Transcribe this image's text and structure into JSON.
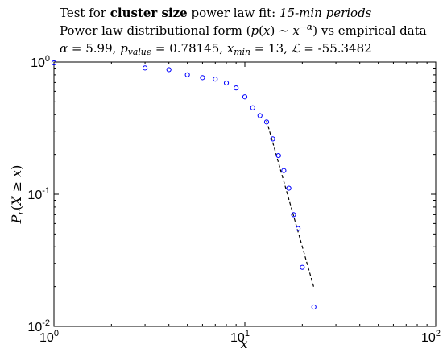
{
  "chart_data": {
    "type": "scatter",
    "title_lines": [
      [
        {
          "text": "Test for ",
          "style": "normal"
        },
        {
          "text": "cluster size",
          "style": "bold"
        },
        {
          "text": " power law fit: ",
          "style": "normal"
        },
        {
          "text": "15-min periods",
          "style": "italic"
        }
      ],
      [
        {
          "text": "Power law distributional form (",
          "style": "normal"
        },
        {
          "text": "p",
          "style": "italic"
        },
        {
          "text": "(",
          "style": "normal"
        },
        {
          "text": "x",
          "style": "italic"
        },
        {
          "text": ") ∼ ",
          "style": "normal"
        },
        {
          "text": "x",
          "style": "italic"
        },
        {
          "text": "−α",
          "style": "sup-italic"
        },
        {
          "text": ") vs empirical data",
          "style": "normal"
        }
      ],
      [
        {
          "text": "α",
          "style": "italic"
        },
        {
          "text": " = 5.99, ",
          "style": "normal"
        },
        {
          "text": "p",
          "style": "italic"
        },
        {
          "text": "value",
          "style": "sub-italic"
        },
        {
          "text": " = 0.78145, ",
          "style": "normal"
        },
        {
          "text": "x",
          "style": "italic"
        },
        {
          "text": "min",
          "style": "sub-italic"
        },
        {
          "text": " = 13, ",
          "style": "normal"
        },
        {
          "text": "ℒ",
          "style": "italic"
        },
        {
          "text": " = -55.3482",
          "style": "normal"
        }
      ]
    ],
    "xlabel": "x",
    "ylabel_parts": [
      {
        "text": "P",
        "style": "italic"
      },
      {
        "text": "r",
        "style": "sub-italic"
      },
      {
        "text": "(",
        "style": "normal"
      },
      {
        "text": "X",
        "style": "italic"
      },
      {
        "text": " ≥ ",
        "style": "normal"
      },
      {
        "text": "x",
        "style": "italic"
      },
      {
        "text": ")",
        "style": "normal"
      }
    ],
    "x_scale": "log",
    "y_scale": "log",
    "xlim": [
      1,
      100
    ],
    "ylim": [
      0.01,
      1
    ],
    "x_ticks": [
      {
        "value": 1,
        "base": "10",
        "exp": "0"
      },
      {
        "value": 10,
        "base": "10",
        "exp": "1"
      },
      {
        "value": 100,
        "base": "10",
        "exp": "2"
      }
    ],
    "y_ticks": [
      {
        "value": 0.01,
        "base": "10",
        "exp": "-2"
      },
      {
        "value": 0.1,
        "base": "10",
        "exp": "-1"
      },
      {
        "value": 1,
        "base": "10",
        "exp": "0"
      }
    ],
    "grid": false,
    "series": [
      {
        "kind": "markers",
        "marker": "open-circle",
        "color": "#0000ff",
        "points": [
          [
            1,
            0.986
          ],
          [
            3,
            0.902
          ],
          [
            4,
            0.876
          ],
          [
            5,
            0.801
          ],
          [
            6,
            0.762
          ],
          [
            7,
            0.743
          ],
          [
            8,
            0.694
          ],
          [
            9,
            0.637
          ],
          [
            10,
            0.545
          ],
          [
            11,
            0.451
          ],
          [
            12,
            0.393
          ],
          [
            13,
            0.352
          ],
          [
            14,
            0.262
          ],
          [
            15,
            0.196
          ],
          [
            16,
            0.151
          ],
          [
            17,
            0.111
          ],
          [
            18,
            0.07
          ],
          [
            19,
            0.055
          ],
          [
            20,
            0.028
          ],
          [
            23,
            0.014
          ]
        ]
      },
      {
        "kind": "line",
        "style": "dashed",
        "color": "#000000",
        "points": [
          [
            13,
            0.36
          ],
          [
            23,
            0.0197
          ]
        ]
      }
    ]
  }
}
